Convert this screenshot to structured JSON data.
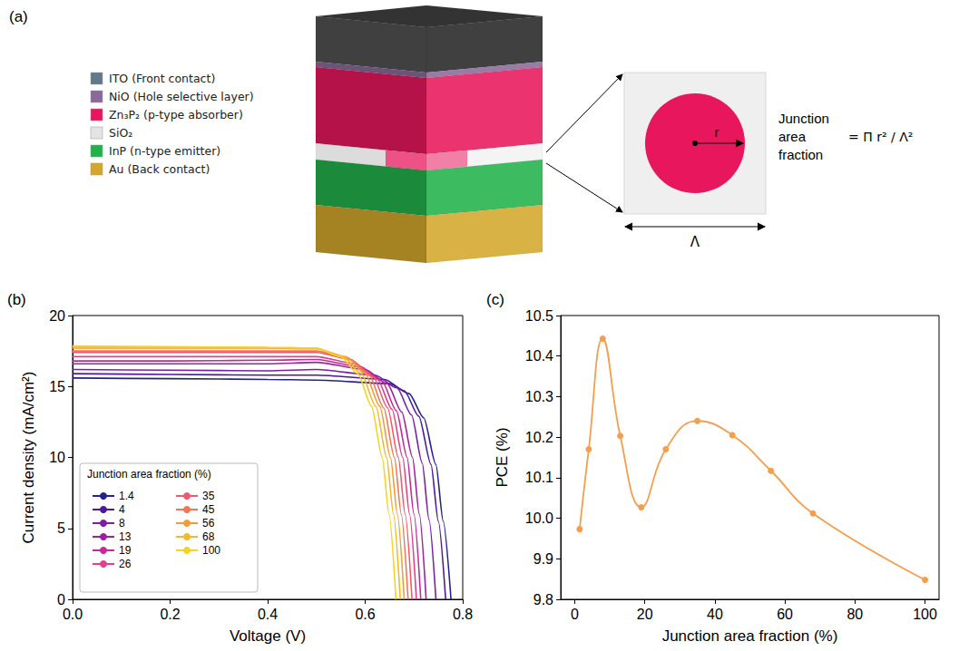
{
  "diagram": {
    "panel": "(a)",
    "layers": [
      {
        "label": "ITO (Front contact)",
        "color": "#64788a"
      },
      {
        "label": "NiO (Hole selective layer)",
        "color": "#8a6a9a"
      },
      {
        "label": "Zn₃P₂ (p-type absorber)",
        "color": "#e8175d"
      },
      {
        "label": "SiO₂",
        "color": "#e4e4e4"
      },
      {
        "label": "InP (n-type emitter)",
        "color": "#22b24c"
      },
      {
        "label": "Au (Back contact)",
        "color": "#d4a72c"
      }
    ],
    "inset": {
      "radius_label": "r",
      "period_label": "Λ",
      "caption": "Junction area fraction",
      "formula": "= Π r² / Λ²"
    }
  },
  "chart_data": [
    {
      "panel": "(b)",
      "type": "line",
      "x_label": "Voltage (V)",
      "y_label": "Current density (mA/cm²)",
      "xlim": [
        0,
        0.8
      ],
      "xticks": [
        {
          "value": 0,
          "label": "0.0"
        },
        0.2,
        0.4,
        0.6,
        0.8
      ],
      "ylim": [
        0,
        20
      ],
      "yticks": [
        0,
        5,
        10,
        15,
        20
      ],
      "grid": false,
      "legend": "lower left",
      "legend_title": "Junction area fraction (%)",
      "series": [
        {
          "name": "1.4",
          "color": "#23238e",
          "x": [
            0,
            0.2,
            0.4,
            0.5,
            0.65,
            0.69,
            0.72,
            0.745,
            0.76,
            0.776
          ],
          "values": [
            15.6,
            15.55,
            15.5,
            15.45,
            15.2,
            14.5,
            12.8,
            9.5,
            5.5,
            0
          ]
        },
        {
          "name": "4",
          "color": "#4b1a9a",
          "x": [
            0,
            0.2,
            0.4,
            0.5,
            0.64,
            0.68,
            0.71,
            0.735,
            0.75,
            0.765
          ],
          "values": [
            15.9,
            15.85,
            15.8,
            15.8,
            15.5,
            14.7,
            12.9,
            9.5,
            5.5,
            0
          ]
        },
        {
          "name": "8",
          "color": "#7a1fa2",
          "x": [
            0,
            0.2,
            0.4,
            0.5,
            0.62,
            0.665,
            0.695,
            0.717,
            0.731,
            0.745
          ],
          "values": [
            16.2,
            16.15,
            16.1,
            16.2,
            15.8,
            14.9,
            13.0,
            9.6,
            5.6,
            0
          ]
        },
        {
          "name": "13",
          "color": "#a020a0",
          "x": [
            0,
            0.2,
            0.4,
            0.5,
            0.6,
            0.645,
            0.675,
            0.697,
            0.711,
            0.725
          ],
          "values": [
            16.6,
            16.6,
            16.6,
            16.7,
            16.2,
            15.2,
            13.2,
            10,
            6,
            0
          ]
        },
        {
          "name": "19",
          "color": "#c62a96",
          "x": [
            0,
            0.2,
            0.4,
            0.5,
            0.59,
            0.634,
            0.664,
            0.686,
            0.7,
            0.714
          ],
          "values": [
            16.8,
            16.8,
            16.85,
            16.9,
            16.4,
            15.4,
            13.3,
            10,
            6,
            0
          ]
        },
        {
          "name": "26",
          "color": "#e0418a",
          "x": [
            0,
            0.2,
            0.4,
            0.5,
            0.58,
            0.625,
            0.655,
            0.677,
            0.691,
            0.705
          ],
          "values": [
            17.1,
            17.1,
            17.1,
            17.1,
            16.6,
            15.5,
            13.4,
            10,
            6,
            0
          ]
        },
        {
          "name": "35",
          "color": "#f05a6e",
          "x": [
            0,
            0.2,
            0.4,
            0.5,
            0.57,
            0.616,
            0.646,
            0.668,
            0.682,
            0.696
          ],
          "values": [
            17.4,
            17.4,
            17.4,
            17.4,
            16.9,
            15.7,
            13.5,
            10,
            6,
            0
          ]
        },
        {
          "name": "45",
          "color": "#f37652",
          "x": [
            0,
            0.2,
            0.4,
            0.5,
            0.565,
            0.608,
            0.638,
            0.66,
            0.674,
            0.688
          ],
          "values": [
            17.5,
            17.5,
            17.5,
            17.5,
            17.0,
            15.8,
            13.5,
            10,
            6,
            0
          ]
        },
        {
          "name": "56",
          "color": "#f59a3a",
          "x": [
            0,
            0.2,
            0.4,
            0.5,
            0.56,
            0.6,
            0.63,
            0.652,
            0.666,
            0.68
          ],
          "values": [
            17.7,
            17.7,
            17.7,
            17.65,
            17.1,
            15.9,
            13.6,
            10,
            6,
            0
          ]
        },
        {
          "name": "68",
          "color": "#f5b82a",
          "x": [
            0,
            0.2,
            0.4,
            0.5,
            0.555,
            0.592,
            0.622,
            0.644,
            0.658,
            0.672
          ],
          "values": [
            17.8,
            17.8,
            17.75,
            17.7,
            17.1,
            15.9,
            13.6,
            10,
            6,
            0
          ]
        },
        {
          "name": "100",
          "color": "#f2d422",
          "x": [
            0,
            0.2,
            0.4,
            0.5,
            0.55,
            0.585,
            0.613,
            0.635,
            0.649,
            0.663
          ],
          "values": [
            17.85,
            17.8,
            17.75,
            17.7,
            17.1,
            15.9,
            13.6,
            10,
            6,
            0
          ]
        }
      ]
    },
    {
      "panel": "(c)",
      "type": "line",
      "marker": "circle",
      "color": "#f59e4c",
      "x_label": "Junction area fraction (%)",
      "y_label": "PCE (%)",
      "x": [
        1.4,
        4,
        8,
        13,
        19,
        26,
        35,
        45,
        56,
        68,
        100
      ],
      "values": [
        9.973,
        10.17,
        10.443,
        10.203,
        10.027,
        10.17,
        10.24,
        10.205,
        10.117,
        10.012,
        9.848
      ],
      "xlim": [
        -4,
        104
      ],
      "xticks": [
        0,
        20,
        40,
        60,
        80,
        100
      ],
      "ylim": [
        9.8,
        10.5
      ],
      "yticks": [
        9.8,
        9.9,
        {
          "value": 10,
          "label": "10.0"
        },
        10.1,
        10.2,
        10.3,
        10.4,
        10.5
      ],
      "grid": false
    }
  ]
}
